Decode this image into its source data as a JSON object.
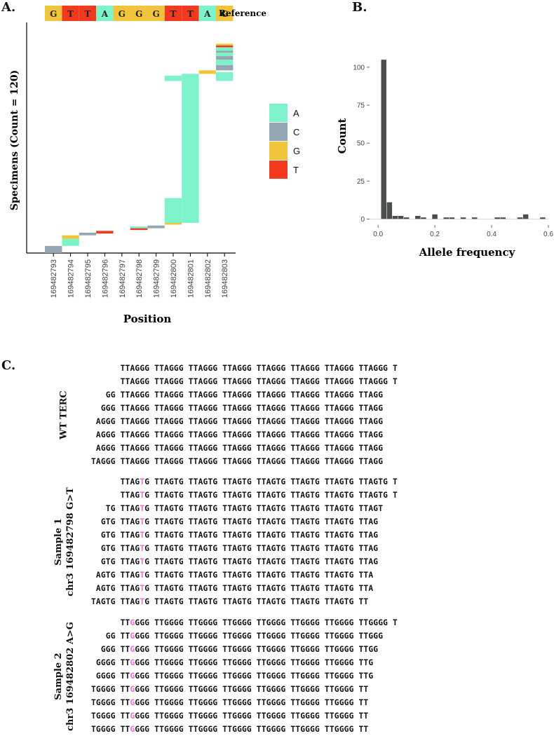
{
  "figure": {
    "panel_a_label": "A.",
    "panel_b_label": "B.",
    "panel_c_label": "C."
  },
  "panel_a": {
    "reference_label": "Reference",
    "reference_bases": [
      "G",
      "T",
      "T",
      "A",
      "G",
      "G",
      "G",
      "T",
      "T",
      "A",
      "G"
    ],
    "base_colors": {
      "A": "#7ef2c8",
      "C": "#93a6b1",
      "G": "#f0c53c",
      "T": "#f23a1e"
    },
    "legend": [
      {
        "base": "A",
        "color": "#7ef2c8"
      },
      {
        "base": "C",
        "color": "#93a6b1"
      },
      {
        "base": "G",
        "color": "#f0c53c"
      },
      {
        "base": "T",
        "color": "#f23a1e"
      }
    ],
    "ylabel": "Specimens (Count = 120)",
    "xlabel": "Position",
    "positions": [
      "169482793",
      "169482794",
      "169482795",
      "169482796",
      "169482797",
      "169482798",
      "169482799",
      "169482800",
      "169482801",
      "169482802",
      "169482803"
    ]
  },
  "chart_data": [
    {
      "type": "bar",
      "title": "",
      "xlabel": "Position",
      "ylabel": "Specimens (Count = 120)",
      "categories": [
        "169482793",
        "169482794",
        "169482795",
        "169482796",
        "169482797",
        "169482798",
        "169482799",
        "169482800",
        "169482801",
        "169482802",
        "169482803"
      ],
      "ylim": [
        0,
        120
      ],
      "segments": [
        {
          "position": "169482793",
          "base": "C",
          "y0": 0,
          "y1": 4
        },
        {
          "position": "169482794",
          "base": "A",
          "y0": 4,
          "y1": 8
        },
        {
          "position": "169482794",
          "base": "G",
          "y0": 8,
          "y1": 10
        },
        {
          "position": "169482795",
          "base": "C",
          "y0": 10,
          "y1": 11.5
        },
        {
          "position": "169482796",
          "base": "T",
          "y0": 11,
          "y1": 12.5
        },
        {
          "position": "169482798",
          "base": "T",
          "y0": 13,
          "y1": 14
        },
        {
          "position": "169482798",
          "base": "A",
          "y0": 14,
          "y1": 15
        },
        {
          "position": "169482799",
          "base": "C",
          "y0": 14,
          "y1": 15.5
        },
        {
          "position": "169482800",
          "base": "G",
          "y0": 16,
          "y1": 17
        },
        {
          "position": "169482800",
          "base": "A",
          "y0": 17,
          "y1": 31
        },
        {
          "position": "169482800",
          "base": "A",
          "y0": 97,
          "y1": 100
        },
        {
          "position": "169482801",
          "base": "A",
          "y0": 17,
          "y1": 101
        },
        {
          "position": "169482802",
          "base": "G",
          "y0": 101,
          "y1": 103
        },
        {
          "position": "169482803",
          "base": "A",
          "y0": 97,
          "y1": 102
        },
        {
          "position": "169482803",
          "base": "C",
          "y0": 103,
          "y1": 106
        },
        {
          "position": "169482803",
          "base": "A",
          "y0": 106,
          "y1": 109
        },
        {
          "position": "169482803",
          "base": "C",
          "y0": 109,
          "y1": 111
        },
        {
          "position": "169482803",
          "base": "A",
          "y0": 111,
          "y1": 113
        },
        {
          "position": "169482803",
          "base": "C",
          "y0": 113,
          "y1": 114
        },
        {
          "position": "169482803",
          "base": "A",
          "y0": 114,
          "y1": 116
        },
        {
          "position": "169482803",
          "base": "T",
          "y0": 116,
          "y1": 117
        },
        {
          "position": "169482803",
          "base": "G",
          "y0": 117,
          "y1": 118
        }
      ]
    },
    {
      "type": "bar",
      "title": "",
      "xlabel": "Allele frequency",
      "ylabel": "Count",
      "x_ticks": [
        "0.0",
        "0.2",
        "0.4",
        "0.6"
      ],
      "y_ticks": [
        "0",
        "25",
        "50",
        "75",
        "100"
      ],
      "xlim": [
        -0.03,
        0.6
      ],
      "ylim": [
        -4,
        112
      ],
      "bin_width": 0.02,
      "bins": [
        {
          "x": 0.02,
          "count": 105
        },
        {
          "x": 0.04,
          "count": 11
        },
        {
          "x": 0.06,
          "count": 2
        },
        {
          "x": 0.08,
          "count": 2
        },
        {
          "x": 0.1,
          "count": 1
        },
        {
          "x": 0.14,
          "count": 2
        },
        {
          "x": 0.16,
          "count": 1
        },
        {
          "x": 0.2,
          "count": 3
        },
        {
          "x": 0.24,
          "count": 1
        },
        {
          "x": 0.26,
          "count": 1
        },
        {
          "x": 0.3,
          "count": 1
        },
        {
          "x": 0.34,
          "count": 1
        },
        {
          "x": 0.42,
          "count": 1
        },
        {
          "x": 0.44,
          "count": 1
        },
        {
          "x": 0.5,
          "count": 1
        },
        {
          "x": 0.52,
          "count": 3
        },
        {
          "x": 0.58,
          "count": 1
        }
      ]
    }
  ],
  "panel_c": {
    "groups": [
      {
        "label_lines": [
          "WT TERC"
        ],
        "rows": [
          [
            {
              "t": "      TTAGGG TTAGGG TTAGGG TTAGGG TTAGGG TTAGGG TTAGGG TTAGGG T"
            }
          ],
          [
            {
              "t": "      TTAGGG TTAGGG TTAGGG TTAGGG TTAGGG TTAGGG TTAGGG TTAGGG T"
            }
          ],
          [
            {
              "t": "   GG TTAGGG TTAGGG TTAGGG TTAGGG TTAGGG TTAGGG TTAGGG TTAGG"
            }
          ],
          [
            {
              "t": "  GGG TTAGGG TTAGGG TTAGGG TTAGGG TTAGGG TTAGGG TTAGGG TTAGG"
            }
          ],
          [
            {
              "t": " AGGG TTAGGG TTAGGG TTAGGG TTAGGG TTAGGG TTAGGG TTAGGG TTAGG"
            }
          ],
          [
            {
              "t": " AGGG TTAGGG TTAGGG TTAGGG TTAGGG TTAGGG TTAGGG TTAGGG TTAGG"
            }
          ],
          [
            {
              "t": " AGGG TTAGGG TTAGGG TTAGGG TTAGGG TTAGGG TTAGGG TTAGGG TTAGG"
            }
          ],
          [
            {
              "t": "TAGGG TTAGGG TTAGGG TTAGGG TTAGGG TTAGGG TTAGGG TTAGGG TTAGG"
            }
          ]
        ]
      },
      {
        "label_lines": [
          "Sample 1",
          "chr3 169482798 G>T"
        ],
        "rows": [
          [
            {
              "t": "      TTAG"
            },
            {
              "t": "T",
              "m": 1
            },
            {
              "t": "G TTAGTG TTAGTG TTAGTG TTAGTG TTAGTG TTAGTG TTAGTG T"
            }
          ],
          [
            {
              "t": "      TTAG"
            },
            {
              "t": "T",
              "m": 1
            },
            {
              "t": "G TTAGTG TTAGTG TTAGTG TTAGTG TTAGTG TTAGTG TTAGTG T"
            }
          ],
          [
            {
              "t": "   TG TTAG"
            },
            {
              "t": "T",
              "m": 1
            },
            {
              "t": "G TTAGTG TTAGTG TTAGTG TTAGTG TTAGTG TTAGTG TTAGT"
            }
          ],
          [
            {
              "t": "  GTG TTAG"
            },
            {
              "t": "T",
              "m": 1
            },
            {
              "t": "G TTAGTG TTAGTG TTAGTG TTAGTG TTAGTG TTAGTG TTAG"
            }
          ],
          [
            {
              "t": "  GTG TTAG"
            },
            {
              "t": "T",
              "m": 1
            },
            {
              "t": "G TTAGTG TTAGTG TTAGTG TTAGTG TTAGTG TTAGTG TTAG"
            }
          ],
          [
            {
              "t": "  GTG TTAG"
            },
            {
              "t": "T",
              "m": 1
            },
            {
              "t": "G TTAGTG TTAGTG TTAGTG TTAGTG TTAGTG TTAGTG TTAG"
            }
          ],
          [
            {
              "t": "  GTG TTAG"
            },
            {
              "t": "T",
              "m": 1
            },
            {
              "t": "G TTAGTG TTAGTG TTAGTG TTAGTG TTAGTG TTAGTG TTAG"
            }
          ],
          [
            {
              "t": " AGTG TTAG"
            },
            {
              "t": "T",
              "m": 1
            },
            {
              "t": "G TTAGTG TTAGTG TTAGTG TTAGTG TTAGTG TTAGTG TTA"
            }
          ],
          [
            {
              "t": " AGTG TTAG"
            },
            {
              "t": "T",
              "m": 1
            },
            {
              "t": "G TTAGTG TTAGTG TTAGTG TTAGTG TTAGTG TTAGTG TTA"
            }
          ],
          [
            {
              "t": "TAGTG TTAG"
            },
            {
              "t": "T",
              "m": 1
            },
            {
              "t": "G TTAGTG TTAGTG TTAGTG TTAGTG TTAGTG TTAGTG TT"
            }
          ]
        ]
      },
      {
        "label_lines": [
          "Sample 2",
          "chr3 169482802 A>G"
        ],
        "rows": [
          [
            {
              "t": "      TT"
            },
            {
              "t": "G",
              "m": 1
            },
            {
              "t": "GGG TTGGGG TTGGGG TTGGGG TTGGGG TTGGGG TTGGGG TTGGGG T"
            }
          ],
          [
            {
              "t": "   GG TT"
            },
            {
              "t": "G",
              "m": 1
            },
            {
              "t": "GGG TTGGGG TTGGGG TTGGGG TTGGGG TTGGGG TTGGGG TTGGG"
            }
          ],
          [
            {
              "t": "  GGG TT"
            },
            {
              "t": "G",
              "m": 1
            },
            {
              "t": "GGG TTGGGG TTGGGG TTGGGG TTGGGG TTGGGG TTGGGG TTGG"
            }
          ],
          [
            {
              "t": " GGGG TT"
            },
            {
              "t": "G",
              "m": 1
            },
            {
              "t": "GGG TTGGGG TTGGGG TTGGGG TTGGGG TTGGGG TTGGGG TTG"
            }
          ],
          [
            {
              "t": " GGGG TT"
            },
            {
              "t": "G",
              "m": 1
            },
            {
              "t": "GGG TTGGGG TTGGGG TTGGGG TTGGGG TTGGGG TTGGGG TTG"
            }
          ],
          [
            {
              "t": "TGGGG TT"
            },
            {
              "t": "G",
              "m": 1
            },
            {
              "t": "GGG TTGGGG TTGGGG TTGGGG TTGGGG TTGGGG TTGGGG TT"
            }
          ],
          [
            {
              "t": "TGGGG TT"
            },
            {
              "t": "G",
              "m": 1
            },
            {
              "t": "GGG TTGGGG TTGGGG TTGGGG TTGGGG TTGGGG TTGGGG TT"
            }
          ],
          [
            {
              "t": "TGGGG TT"
            },
            {
              "t": "G",
              "m": 1
            },
            {
              "t": "GGG TTGGGG TTGGGG TTGGGG TTGGGG TTGGGG TTGGGG TT"
            }
          ],
          [
            {
              "t": "TGGGG TT"
            },
            {
              "t": "G",
              "m": 1
            },
            {
              "t": "GGG TTGGGG TTGGGG TTGGGG TTGGGG TTGGGG TTGGGG TT"
            }
          ]
        ]
      }
    ]
  }
}
